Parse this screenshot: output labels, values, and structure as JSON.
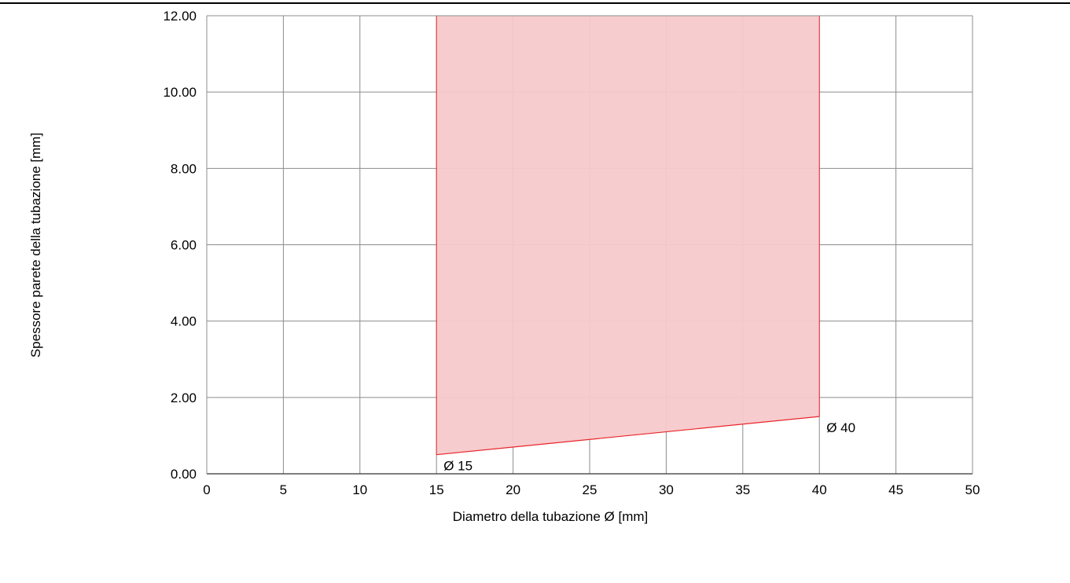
{
  "chart_data": {
    "type": "area",
    "xlabel": "Diametro della tubazione Ø [mm]",
    "ylabel": "Spessore parete della tubazione [mm]",
    "xlim": [
      0,
      50
    ],
    "ylim": [
      0,
      12
    ],
    "x_ticks": [
      "0",
      "5",
      "10",
      "15",
      "20",
      "25",
      "30",
      "35",
      "40",
      "45",
      "50"
    ],
    "y_ticks": [
      "0.00",
      "2.00",
      "4.00",
      "6.00",
      "8.00",
      "10.00",
      "12.00"
    ],
    "grid": true,
    "series": [
      {
        "points": [
          [
            15,
            0.5
          ],
          [
            40,
            1.5
          ],
          [
            40,
            12
          ],
          [
            15,
            12
          ]
        ],
        "fill": "#f7c9cb",
        "stroke": "#e8262c"
      }
    ],
    "annotations": [
      {
        "text": "Ø 15",
        "x": 15,
        "y": 0.5
      },
      {
        "text": "Ø 40",
        "x": 40,
        "y": 1.5
      }
    ]
  }
}
